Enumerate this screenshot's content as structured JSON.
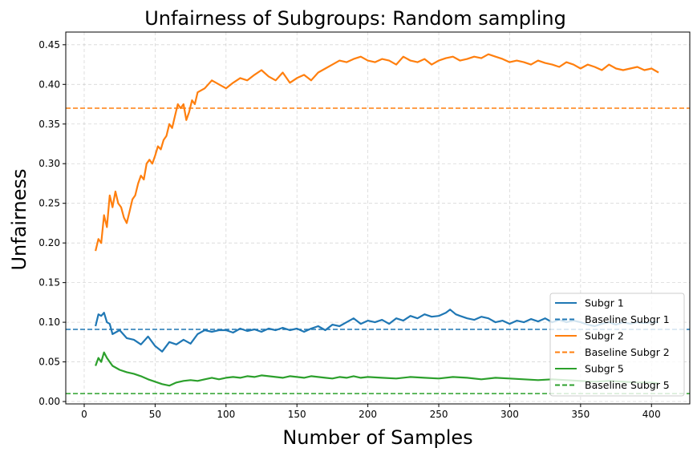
{
  "chart_data": {
    "type": "line",
    "title": "Unfairness of Subgroups: Random sampling",
    "xlabel": "Number of Samples",
    "ylabel": "Unfairness",
    "xlim": [
      -13,
      427
    ],
    "ylim": [
      -0.003,
      0.466
    ],
    "xticks": [
      0,
      50,
      100,
      150,
      200,
      250,
      300,
      350,
      400
    ],
    "yticks": [
      0.0,
      0.05,
      0.1,
      0.15,
      0.2,
      0.25,
      0.3,
      0.35,
      0.4,
      0.45
    ],
    "xtick_labels": [
      "0",
      "50",
      "100",
      "150",
      "200",
      "250",
      "300",
      "350",
      "400"
    ],
    "ytick_labels": [
      "0.00",
      "0.05",
      "0.10",
      "0.15",
      "0.20",
      "0.25",
      "0.30",
      "0.35",
      "0.40",
      "0.45"
    ],
    "grid": true,
    "legend_position": "bottom-right",
    "series": [
      {
        "name": "Subgr 1",
        "style": "solid",
        "color": "#1f77b4",
        "x": [
          8,
          10,
          12,
          14,
          16,
          18,
          20,
          25,
          30,
          35,
          40,
          45,
          50,
          55,
          60,
          65,
          70,
          75,
          80,
          85,
          90,
          95,
          100,
          105,
          110,
          115,
          120,
          125,
          130,
          135,
          140,
          145,
          150,
          155,
          160,
          165,
          170,
          175,
          180,
          185,
          190,
          195,
          200,
          205,
          210,
          215,
          220,
          225,
          230,
          235,
          240,
          245,
          250,
          255,
          258,
          262,
          265,
          270,
          275,
          280,
          285,
          290,
          295,
          300,
          305,
          310,
          315,
          320,
          325,
          330,
          335,
          340,
          345,
          350,
          355,
          360,
          365,
          370,
          375,
          380,
          385,
          390,
          395,
          400,
          405
        ],
        "y": [
          0.095,
          0.11,
          0.108,
          0.112,
          0.1,
          0.098,
          0.085,
          0.09,
          0.08,
          0.078,
          0.072,
          0.082,
          0.07,
          0.063,
          0.075,
          0.072,
          0.078,
          0.073,
          0.085,
          0.09,
          0.088,
          0.09,
          0.09,
          0.087,
          0.092,
          0.089,
          0.091,
          0.088,
          0.092,
          0.09,
          0.093,
          0.09,
          0.092,
          0.088,
          0.092,
          0.095,
          0.09,
          0.097,
          0.095,
          0.1,
          0.105,
          0.098,
          0.102,
          0.1,
          0.103,
          0.098,
          0.105,
          0.102,
          0.108,
          0.105,
          0.11,
          0.107,
          0.108,
          0.112,
          0.116,
          0.11,
          0.108,
          0.105,
          0.103,
          0.107,
          0.105,
          0.1,
          0.102,
          0.098,
          0.102,
          0.1,
          0.104,
          0.101,
          0.105,
          0.1,
          0.103,
          0.1,
          0.102,
          0.1,
          0.097,
          0.095,
          0.098,
          0.1,
          0.097,
          0.1,
          0.098,
          0.1,
          0.099,
          0.1,
          0.1
        ]
      },
      {
        "name": "Baseline Subgr 1",
        "style": "dashed",
        "color": "#1f77b4",
        "value": 0.091
      },
      {
        "name": "Subgr 2",
        "style": "solid",
        "color": "#ff7f0e",
        "x": [
          8,
          10,
          12,
          14,
          16,
          18,
          20,
          22,
          24,
          26,
          28,
          30,
          32,
          34,
          36,
          38,
          40,
          42,
          44,
          46,
          48,
          50,
          52,
          54,
          56,
          58,
          60,
          62,
          64,
          66,
          68,
          70,
          72,
          74,
          76,
          78,
          80,
          85,
          90,
          95,
          100,
          105,
          110,
          115,
          120,
          125,
          130,
          135,
          140,
          145,
          150,
          155,
          160,
          165,
          170,
          175,
          180,
          185,
          190,
          195,
          200,
          205,
          210,
          215,
          220,
          225,
          230,
          235,
          240,
          245,
          250,
          255,
          260,
          265,
          270,
          275,
          280,
          285,
          290,
          295,
          300,
          305,
          310,
          315,
          320,
          325,
          330,
          335,
          340,
          345,
          350,
          355,
          360,
          365,
          370,
          375,
          380,
          385,
          390,
          395,
          400,
          405
        ],
        "y": [
          0.19,
          0.205,
          0.2,
          0.235,
          0.22,
          0.26,
          0.245,
          0.265,
          0.25,
          0.245,
          0.232,
          0.225,
          0.24,
          0.255,
          0.26,
          0.275,
          0.285,
          0.28,
          0.3,
          0.305,
          0.3,
          0.31,
          0.322,
          0.318,
          0.33,
          0.335,
          0.35,
          0.345,
          0.36,
          0.375,
          0.37,
          0.375,
          0.355,
          0.365,
          0.38,
          0.375,
          0.39,
          0.395,
          0.405,
          0.4,
          0.395,
          0.402,
          0.408,
          0.405,
          0.412,
          0.418,
          0.41,
          0.405,
          0.415,
          0.402,
          0.408,
          0.412,
          0.405,
          0.415,
          0.42,
          0.425,
          0.43,
          0.428,
          0.432,
          0.435,
          0.43,
          0.428,
          0.432,
          0.43,
          0.425,
          0.435,
          0.43,
          0.428,
          0.432,
          0.425,
          0.43,
          0.433,
          0.435,
          0.43,
          0.432,
          0.435,
          0.433,
          0.438,
          0.435,
          0.432,
          0.428,
          0.43,
          0.428,
          0.425,
          0.43,
          0.427,
          0.425,
          0.422,
          0.428,
          0.425,
          0.42,
          0.425,
          0.422,
          0.418,
          0.425,
          0.42,
          0.418,
          0.42,
          0.422,
          0.418,
          0.42,
          0.415
        ]
      },
      {
        "name": "Baseline Subgr 2",
        "style": "dashed",
        "color": "#ff7f0e",
        "value": 0.37
      },
      {
        "name": "Subgr 5",
        "style": "solid",
        "color": "#2ca02c",
        "x": [
          8,
          10,
          12,
          14,
          16,
          18,
          20,
          25,
          30,
          35,
          40,
          45,
          50,
          55,
          60,
          65,
          70,
          75,
          80,
          85,
          90,
          95,
          100,
          105,
          110,
          115,
          120,
          125,
          130,
          135,
          140,
          145,
          150,
          155,
          160,
          165,
          170,
          175,
          180,
          185,
          190,
          195,
          200,
          210,
          220,
          230,
          240,
          250,
          260,
          270,
          280,
          290,
          300,
          310,
          320,
          330,
          340,
          350,
          360,
          370,
          380,
          390,
          400,
          405
        ],
        "y": [
          0.045,
          0.055,
          0.05,
          0.062,
          0.055,
          0.05,
          0.045,
          0.04,
          0.037,
          0.035,
          0.032,
          0.028,
          0.025,
          0.022,
          0.02,
          0.024,
          0.026,
          0.027,
          0.026,
          0.028,
          0.03,
          0.028,
          0.03,
          0.031,
          0.03,
          0.032,
          0.031,
          0.033,
          0.032,
          0.031,
          0.03,
          0.032,
          0.031,
          0.03,
          0.032,
          0.031,
          0.03,
          0.029,
          0.031,
          0.03,
          0.032,
          0.03,
          0.031,
          0.03,
          0.029,
          0.031,
          0.03,
          0.029,
          0.031,
          0.03,
          0.028,
          0.03,
          0.029,
          0.028,
          0.027,
          0.028,
          0.027,
          0.026,
          0.025,
          0.026,
          0.025,
          0.024,
          0.024,
          0.023
        ]
      },
      {
        "name": "Baseline Subgr 5",
        "style": "dashed",
        "color": "#2ca02c",
        "value": 0.01
      }
    ]
  }
}
